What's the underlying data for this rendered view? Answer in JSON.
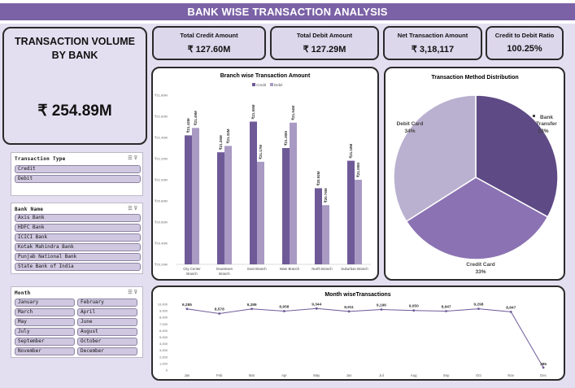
{
  "title": "BANK WISE  TRANSACTION ANALYSIS",
  "volume": {
    "label_line1": "TRANSACTION VOLUME",
    "label_line2": "BY BANK",
    "value": "₹ 254.89M"
  },
  "kpis": [
    {
      "label": "Total Credit Amount",
      "value": "₹ 127.60M"
    },
    {
      "label": "Total Debit Amount",
      "value": "₹ 127.29M"
    },
    {
      "label": "Net Transaction Amount",
      "value": "₹ 3,18,117"
    },
    {
      "label": "Credit to Debit Ratio",
      "value": "100.25%"
    }
  ],
  "slicers": {
    "transaction_type": {
      "title": "Transaction Type",
      "items": [
        "Credit",
        "Debit"
      ]
    },
    "bank_name": {
      "title": "Bank Name",
      "items": [
        "Axis Bank",
        "HDFC Bank",
        "ICICI Bank",
        "Kotak Mahindra Bank",
        "Punjab National Bank",
        "State Bank of India"
      ]
    },
    "month": {
      "title": "Month",
      "items": [
        "January",
        "February",
        "March",
        "April",
        "May",
        "June",
        "July",
        "August",
        "September",
        "October",
        "November",
        "December"
      ]
    },
    "icons": [
      "multi-select-icon",
      "clear-filter-icon"
    ]
  },
  "chart_data": [
    {
      "type": "bar",
      "title": "Branch wise Transaction Amount",
      "categories": [
        "City Center Branch",
        "Downtown Branch",
        "East Branch",
        "Main Branch",
        "North Branch",
        "Suburban Branch"
      ],
      "series": [
        {
          "name": "Credit",
          "values": [
            21.42,
            21.26,
            21.55,
            21.3,
            20.92,
            21.18
          ],
          "labels": [
            "₹21.42M",
            "₹21.26M",
            "₹21.55M",
            "₹21.30M",
            "₹20.92M",
            "₹21.18M"
          ],
          "color": "#6f5a98"
        },
        {
          "name": "Debit",
          "values": [
            21.49,
            21.32,
            21.17,
            21.54,
            20.76,
            21.0
          ],
          "labels": [
            "₹21.49M",
            "₹21.32M",
            "₹21.17M",
            "₹21.54M",
            "₹20.76M",
            "₹21.00M"
          ],
          "color": "#a99ac4"
        }
      ],
      "yticks": [
        "₹20.20M",
        "₹20.40M",
        "₹20.60M",
        "₹20.80M",
        "₹21.00M",
        "₹21.20M",
        "₹21.40M",
        "₹21.60M",
        "₹21.80M"
      ],
      "ylim": [
        20.2,
        21.8
      ],
      "legend": "top"
    },
    {
      "type": "pie",
      "title": "Transaction Method Distribution",
      "slices": [
        {
          "name": "Bank Transfer",
          "value": 33,
          "label": "33%",
          "color": "#5e4a85"
        },
        {
          "name": "Credit Card",
          "value": 33,
          "label": "33%",
          "color": "#8b72b3"
        },
        {
          "name": "Debit Card",
          "value": 34,
          "label": "34%",
          "color": "#bab1d0"
        }
      ]
    },
    {
      "type": "line",
      "title": "Month wiseTransactions",
      "x": [
        "Jan",
        "Feb",
        "Mar",
        "Apr",
        "May",
        "Jun",
        "Jul",
        "Aug",
        "Sep",
        "Oct",
        "Nov",
        "Dec"
      ],
      "values": [
        9285,
        8578,
        9289,
        8958,
        9344,
        8911,
        9196,
        9050,
        8947,
        9298,
        8847,
        385
      ],
      "labels": [
        "9,285",
        "8,578",
        "9,289",
        "8,958",
        "9,344",
        "8,911",
        "9,196",
        "9,050",
        "8,947",
        "9,298",
        "8,847",
        "385"
      ],
      "yticks": [
        "0",
        "1,000",
        "2,000",
        "3,000",
        "4,000",
        "5,000",
        "6,000",
        "7,000",
        "8,000",
        "9,000",
        "10,000"
      ],
      "ylim": [
        0,
        10000
      ],
      "color": "#6f5a98"
    }
  ]
}
